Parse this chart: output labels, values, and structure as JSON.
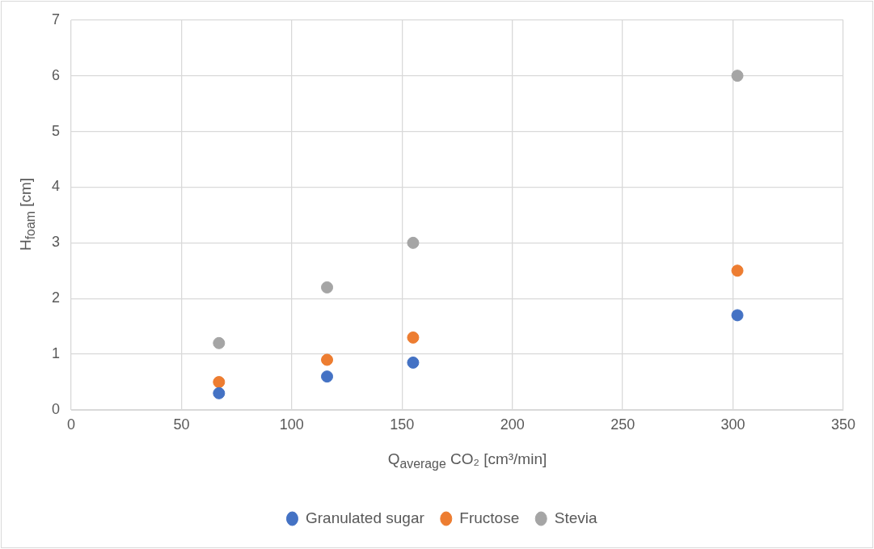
{
  "chart_data": {
    "type": "scatter",
    "xlabel": "Q$_{average}$ CO₂ [cm³/min]",
    "ylabel": "H$_{foam}$  [cm]",
    "x": [
      67,
      116,
      155,
      302
    ],
    "series": [
      {
        "name": "Granulated sugar",
        "color": "#4472c4",
        "values": [
          0.3,
          0.6,
          0.85,
          1.7
        ]
      },
      {
        "name": "Fructose",
        "color": "#ed7d31",
        "values": [
          0.5,
          0.9,
          1.3,
          2.5
        ]
      },
      {
        "name": "Stevia",
        "color": "#a5a5a5",
        "values": [
          1.2,
          2.2,
          3.0,
          6.0
        ]
      }
    ],
    "xlim": [
      0,
      350
    ],
    "xticks": [
      0,
      50,
      100,
      150,
      200,
      250,
      300,
      350
    ],
    "ylim": [
      0,
      7
    ],
    "yticks": [
      0,
      1,
      2,
      3,
      4,
      5,
      6,
      7
    ],
    "grid": true,
    "legend": "bottom",
    "marker": "circle"
  }
}
